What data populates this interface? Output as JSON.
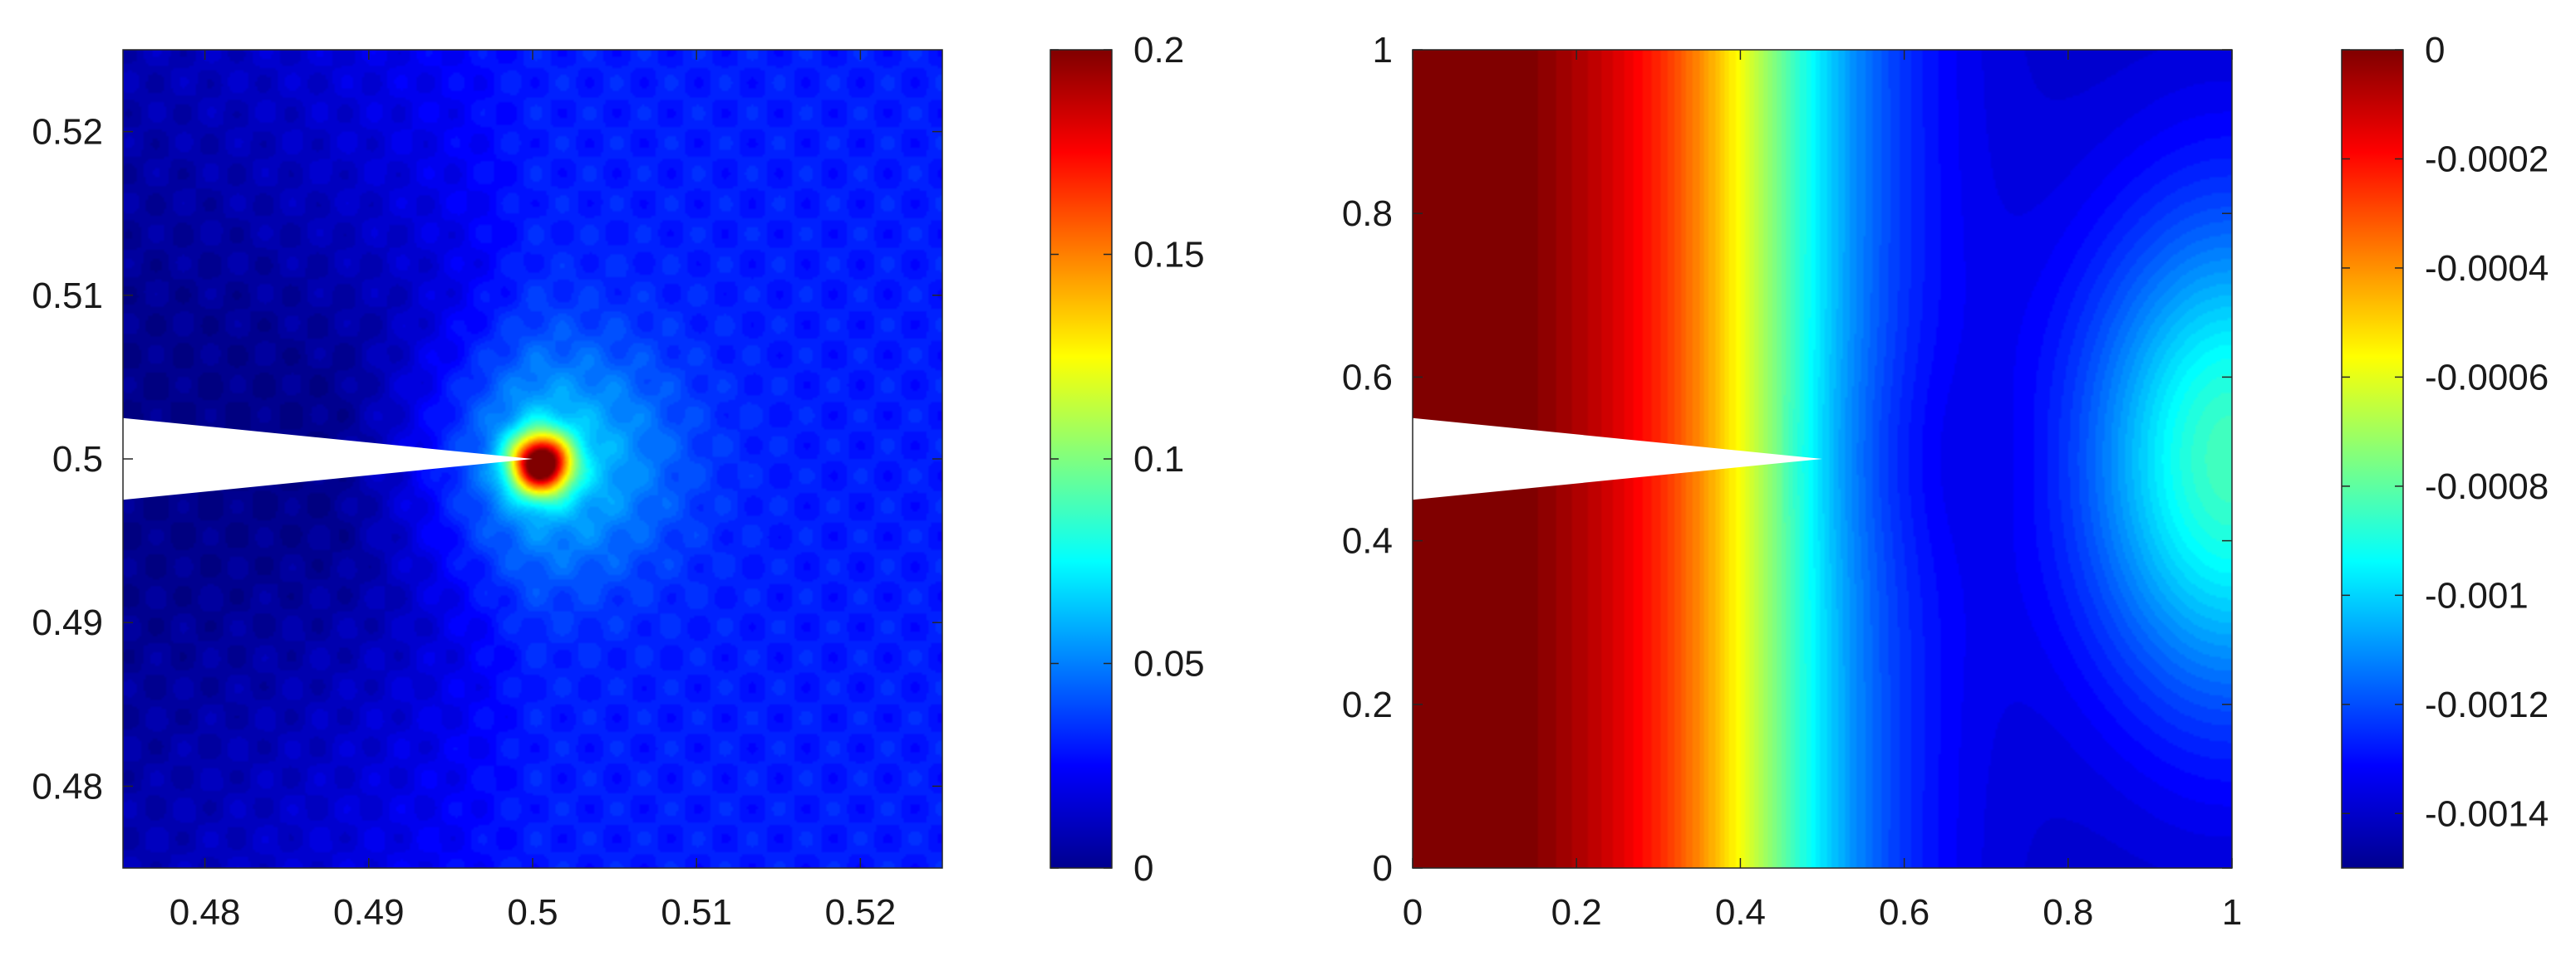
{
  "chart_data": [
    {
      "type": "heatmap",
      "title": "",
      "xlabel": "",
      "ylabel": "",
      "xlim": [
        0.475,
        0.525
      ],
      "ylim": [
        0.475,
        0.525
      ],
      "xticks": [
        0.48,
        0.49,
        0.5,
        0.51,
        0.52
      ],
      "xtick_labels": [
        "0.48",
        "0.49",
        "0.5",
        "0.51",
        "0.52"
      ],
      "yticks": [
        0.48,
        0.49,
        0.5,
        0.51,
        0.52
      ],
      "ytick_labels": [
        "0.48",
        "0.49",
        "0.5",
        "0.51",
        "0.52"
      ],
      "colormap": "jet",
      "clim": [
        0,
        0.2
      ],
      "colorbar_ticks": [
        0,
        0.05,
        0.1,
        0.15,
        0.2
      ],
      "colorbar_tick_labels": [
        "0",
        "0.05",
        "0.1",
        "0.15",
        "0.2"
      ],
      "crack": {
        "tip": [
          0.5,
          0.5
        ],
        "mouth": [
          0.475,
          0.4975,
          0.5025
        ]
      },
      "features": [
        {
          "kind": "peak",
          "at": [
            0.5005,
            0.4997
          ],
          "value": 0.2
        },
        {
          "kind": "halo",
          "at": [
            0.5015,
            0.5
          ],
          "value": 0.07
        }
      ],
      "background_value": 0.03,
      "dark_region": "left of crack"
    },
    {
      "type": "heatmap",
      "title": "",
      "xlabel": "",
      "ylabel": "",
      "xlim": [
        0,
        1
      ],
      "ylim": [
        0,
        1
      ],
      "xticks": [
        0,
        0.2,
        0.4,
        0.6,
        0.8,
        1
      ],
      "xtick_labels": [
        "0",
        "0.2",
        "0.4",
        "0.6",
        "0.8",
        "1"
      ],
      "yticks": [
        0,
        0.2,
        0.4,
        0.6,
        0.8,
        1
      ],
      "ytick_labels": [
        "0",
        "0.2",
        "0.4",
        "0.6",
        "0.8",
        "1"
      ],
      "colormap": "jet",
      "clim": [
        -0.0015,
        0
      ],
      "colorbar_ticks": [
        0,
        -0.0002,
        -0.0004,
        -0.0006,
        -0.0008,
        -0.001,
        -0.0012,
        -0.0014
      ],
      "colorbar_tick_labels": [
        "0",
        "-0.0002",
        "-0.0004",
        "-0.0006",
        "-0.0008",
        "-0.001",
        "-0.0012",
        "-0.0014"
      ],
      "crack": {
        "tip": [
          0.5,
          0.5
        ],
        "mouth": [
          0,
          0.45,
          0.55
        ]
      },
      "features": [
        {
          "kind": "minimum",
          "at": [
            0.62,
            0.5
          ],
          "value": -0.00145
        },
        {
          "kind": "minimum",
          "at": [
            1,
            1
          ],
          "value": -0.0014
        },
        {
          "kind": "minimum",
          "at": [
            1,
            0
          ],
          "value": -0.0014
        }
      ],
      "left_edge_value": 0,
      "isoline_0_0006_x": 0.37
    }
  ]
}
